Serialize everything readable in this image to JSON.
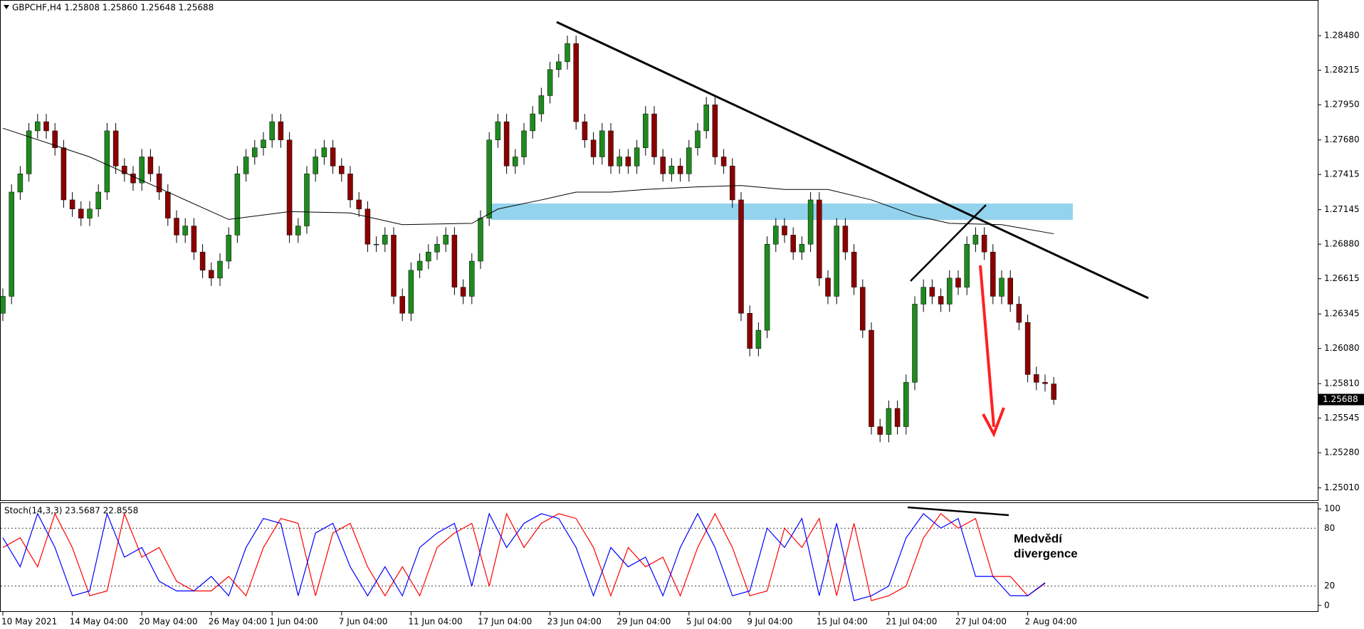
{
  "chart_data": {
    "type": "candlestick",
    "title": "GBPCHF,H4  1.25808 1.25860 1.25648 1.25688",
    "up_color": "#1f8a1f",
    "down_color": "#8b0000",
    "wick_color": "#000000",
    "open": [
      1.2635,
      1.2648,
      1.2728,
      1.2742,
      1.2775,
      1.2782,
      1.2775,
      1.2762,
      1.2722,
      1.2715,
      1.2708,
      1.2715,
      1.2728,
      1.2775,
      1.2748,
      1.2742,
      1.2735,
      1.2755,
      1.2742,
      1.2728,
      1.2708,
      1.2695,
      1.2702,
      1.2682,
      1.2668,
      1.2662,
      1.2675,
      1.2695,
      1.2742,
      1.2755,
      1.2762,
      1.2768,
      1.2782,
      1.2768,
      1.2695,
      1.2702,
      1.2742,
      1.2755,
      1.2762,
      1.2748,
      1.2742,
      1.2722,
      1.2715,
      1.2688,
      1.2688,
      1.2695,
      1.2648,
      1.2635,
      1.2668,
      1.2675,
      1.2682,
      1.2688,
      1.2695,
      1.2655,
      1.2648,
      1.2675,
      1.2708,
      1.2768,
      1.2782,
      1.2748,
      1.2755,
      1.2775,
      1.2788,
      1.2802,
      1.2822,
      1.2828,
      1.2842,
      1.2782,
      1.2768,
      1.2755,
      1.2775,
      1.2748,
      1.2755,
      1.2748,
      1.2762,
      1.2788,
      1.2755,
      1.2742,
      1.2748,
      1.2742,
      1.2762,
      1.2775,
      1.2795,
      1.2755,
      1.2748,
      1.2722,
      1.2635,
      1.2608,
      1.2622,
      1.2688,
      1.2702,
      1.2695,
      1.2682,
      1.2688,
      1.2722,
      1.2662,
      1.2648,
      1.2702,
      1.2682,
      1.2655,
      1.2622,
      1.2548,
      1.2542,
      1.2562,
      1.2548,
      1.2582,
      1.2642,
      1.2655,
      1.2648,
      1.2642,
      1.2662,
      1.2655,
      1.2688,
      1.2695,
      1.2682,
      1.2648,
      1.2662,
      1.2642,
      1.2628,
      1.2588,
      1.2582,
      1.25808
    ],
    "high": [
      1.2654,
      1.2734,
      1.2748,
      1.2781,
      1.2788,
      1.2788,
      1.2781,
      1.2768,
      1.2728,
      1.2721,
      1.2721,
      1.2734,
      1.2781,
      1.2781,
      1.2754,
      1.2748,
      1.2761,
      1.2761,
      1.2748,
      1.2734,
      1.2714,
      1.2708,
      1.2708,
      1.2688,
      1.2674,
      1.2681,
      1.2701,
      1.2748,
      1.2761,
      1.2768,
      1.2774,
      1.2788,
      1.2788,
      1.2774,
      1.2708,
      1.2748,
      1.2761,
      1.2768,
      1.2768,
      1.2754,
      1.2748,
      1.2728,
      1.2721,
      1.2694,
      1.2701,
      1.2701,
      1.2654,
      1.2674,
      1.2681,
      1.2688,
      1.2694,
      1.2701,
      1.2701,
      1.2661,
      1.2681,
      1.2714,
      1.2774,
      1.2788,
      1.2788,
      1.2761,
      1.2781,
      1.2794,
      1.2808,
      1.2828,
      1.2834,
      1.2848,
      1.2848,
      1.2788,
      1.2774,
      1.2781,
      1.2781,
      1.2761,
      1.2761,
      1.2768,
      1.2794,
      1.2794,
      1.2761,
      1.2754,
      1.2754,
      1.2768,
      1.2781,
      1.2801,
      1.2801,
      1.2761,
      1.2754,
      1.2728,
      1.2641,
      1.2628,
      1.2694,
      1.2708,
      1.2708,
      1.2701,
      1.2694,
      1.2728,
      1.2728,
      1.2668,
      1.2708,
      1.2708,
      1.2688,
      1.2661,
      1.2628,
      1.2554,
      1.2568,
      1.2568,
      1.2588,
      1.2648,
      1.2661,
      1.2661,
      1.2654,
      1.2668,
      1.2668,
      1.2694,
      1.2701,
      1.2701,
      1.2688,
      1.2668,
      1.2668,
      1.2648,
      1.2634,
      1.2594,
      1.2588,
      1.2586
    ],
    "low": [
      1.2629,
      1.2642,
      1.2722,
      1.2736,
      1.2769,
      1.2769,
      1.2756,
      1.2716,
      1.2709,
      1.2702,
      1.2702,
      1.2709,
      1.2722,
      1.2742,
      1.2736,
      1.2729,
      1.2729,
      1.2736,
      1.2722,
      1.2702,
      1.2689,
      1.2689,
      1.2676,
      1.2662,
      1.2656,
      1.2656,
      1.2669,
      1.2689,
      1.2736,
      1.2749,
      1.2756,
      1.2762,
      1.2762,
      1.2689,
      1.2689,
      1.2696,
      1.2736,
      1.2749,
      1.2742,
      1.2736,
      1.2716,
      1.2709,
      1.2682,
      1.2682,
      1.2682,
      1.2642,
      1.2629,
      1.2629,
      1.2662,
      1.2669,
      1.2676,
      1.2682,
      1.2649,
      1.2642,
      1.2642,
      1.2669,
      1.2702,
      1.2762,
      1.2742,
      1.2742,
      1.2749,
      1.2769,
      1.2782,
      1.2796,
      1.2816,
      1.2822,
      1.2776,
      1.2762,
      1.2749,
      1.2749,
      1.2742,
      1.2742,
      1.2742,
      1.2742,
      1.2756,
      1.2749,
      1.2736,
      1.2736,
      1.2736,
      1.2736,
      1.2756,
      1.2769,
      1.2749,
      1.2742,
      1.2716,
      1.2629,
      1.2602,
      1.2602,
      1.2616,
      1.2682,
      1.2689,
      1.2676,
      1.2676,
      1.2682,
      1.2656,
      1.2642,
      1.2642,
      1.2676,
      1.2649,
      1.2616,
      1.2542,
      1.2536,
      1.2536,
      1.2542,
      1.2542,
      1.2576,
      1.2636,
      1.2642,
      1.2636,
      1.2636,
      1.2649,
      1.2649,
      1.2682,
      1.2676,
      1.2642,
      1.2642,
      1.2636,
      1.2622,
      1.2582,
      1.2576,
      1.2575,
      1.25648
    ],
    "close": [
      1.2648,
      1.2728,
      1.2742,
      1.2775,
      1.2782,
      1.2775,
      1.2762,
      1.2722,
      1.2715,
      1.2708,
      1.2715,
      1.2728,
      1.2775,
      1.2748,
      1.2742,
      1.2735,
      1.2755,
      1.2742,
      1.2728,
      1.2708,
      1.2695,
      1.2702,
      1.2682,
      1.2668,
      1.2662,
      1.2675,
      1.2695,
      1.2742,
      1.2755,
      1.2762,
      1.2768,
      1.2782,
      1.2768,
      1.2695,
      1.2702,
      1.2742,
      1.2755,
      1.2762,
      1.2748,
      1.2742,
      1.2722,
      1.2715,
      1.2688,
      1.2688,
      1.2695,
      1.2648,
      1.2635,
      1.2668,
      1.2675,
      1.2682,
      1.2688,
      1.2695,
      1.2655,
      1.2648,
      1.2675,
      1.2708,
      1.2768,
      1.2782,
      1.2748,
      1.2755,
      1.2775,
      1.2788,
      1.2802,
      1.2822,
      1.2828,
      1.2842,
      1.2782,
      1.2768,
      1.2755,
      1.2775,
      1.2748,
      1.2755,
      1.2748,
      1.2762,
      1.2788,
      1.2755,
      1.2742,
      1.2748,
      1.2742,
      1.2762,
      1.2775,
      1.2795,
      1.2755,
      1.2748,
      1.2722,
      1.2635,
      1.2608,
      1.2622,
      1.2688,
      1.2702,
      1.2695,
      1.2682,
      1.2688,
      1.2722,
      1.2662,
      1.2648,
      1.2702,
      1.2682,
      1.2655,
      1.2622,
      1.2548,
      1.2542,
      1.2562,
      1.2548,
      1.2582,
      1.2642,
      1.2655,
      1.2648,
      1.2642,
      1.2662,
      1.2655,
      1.2688,
      1.2695,
      1.2682,
      1.2648,
      1.2662,
      1.2642,
      1.2628,
      1.2588,
      1.2582,
      1.2581,
      1.25688
    ],
    "ylim": [
      1.2491,
      1.28754
    ],
    "yticks": [
      {
        "value": 1.2848,
        "label": "1.28480"
      },
      1.28215,
      {
        "value": 1.2795,
        "label": "1.27950"
      },
      {
        "value": 1.2768,
        "label": "1.27680"
      },
      1.27415,
      1.27145,
      {
        "value": 1.2688,
        "label": "1.26880"
      },
      1.26615,
      1.26345,
      {
        "value": 1.2608,
        "label": "1.26080"
      },
      {
        "value": 1.2581,
        "label": "1.25810"
      },
      1.25545,
      {
        "value": 1.2528,
        "label": "1.25280"
      },
      {
        "value": 1.2501,
        "label": "1.25010"
      }
    ],
    "xticks": [
      {
        "value": 0,
        "label": "10 May 2021"
      },
      {
        "value": 8,
        "label": "14 May 04:00"
      },
      {
        "value": 16,
        "label": "20 May 04:00"
      },
      {
        "value": 24,
        "label": "26 May 04:00"
      },
      {
        "value": 31,
        "label": "1 Jun 04:00"
      },
      {
        "value": 39,
        "label": "7 Jun 04:00"
      },
      {
        "value": 47,
        "label": "11 Jun 04:00"
      },
      {
        "value": 55,
        "label": "17 Jun 04:00"
      },
      {
        "value": 63,
        "label": "23 Jun 04:00"
      },
      {
        "value": 71,
        "label": "29 Jun 04:00"
      },
      {
        "value": 79,
        "label": "5 Jul 04:00"
      },
      {
        "value": 86,
        "label": "9 Jul 04:00"
      },
      {
        "value": 94,
        "label": "15 Jul 04:00"
      },
      {
        "value": 102,
        "label": "21 Jul 04:00"
      },
      {
        "value": 110,
        "label": "27 Jul 04:00"
      },
      {
        "value": 118,
        "label": "2 Aug 04:00"
      }
    ],
    "ma": {
      "color": "#000000",
      "x": [
        0,
        10,
        20,
        26,
        33,
        40,
        46,
        54,
        57,
        62,
        66,
        70,
        74,
        80,
        85,
        90,
        95,
        100,
        105,
        109,
        115,
        121
      ],
      "values": [
        1.2777,
        1.2755,
        1.2725,
        1.2707,
        1.2713,
        1.2712,
        1.2703,
        1.2704,
        1.2715,
        1.2722,
        1.2728,
        1.2728,
        1.273,
        1.2732,
        1.2733,
        1.273,
        1.273,
        1.2722,
        1.271,
        1.2704,
        1.2703,
        1.2696
      ]
    },
    "indicator": {
      "type": "line",
      "title": "Stoch(14,3,3) 23.5687 22.8558",
      "x": [
        0,
        2,
        4,
        6,
        8,
        10,
        12,
        14,
        16,
        18,
        20,
        22,
        24,
        26,
        28,
        30,
        32,
        34,
        36,
        38,
        40,
        42,
        44,
        46,
        48,
        50,
        52,
        54,
        56,
        58,
        60,
        62,
        64,
        66,
        68,
        70,
        72,
        74,
        76,
        78,
        80,
        82,
        84,
        86,
        88,
        90,
        92,
        94,
        96,
        98,
        100,
        102,
        104,
        106,
        108,
        110,
        112,
        114,
        116,
        118,
        120
      ],
      "series": [
        {
          "color": "#0000ff",
          "values": [
            70,
            40,
            95,
            60,
            10,
            15,
            95,
            50,
            60,
            25,
            15,
            15,
            30,
            10,
            60,
            90,
            85,
            10,
            75,
            85,
            40,
            10,
            40,
            10,
            60,
            75,
            85,
            20,
            95,
            60,
            85,
            95,
            90,
            60,
            10,
            60,
            40,
            50,
            10,
            60,
            95,
            60,
            10,
            15,
            80,
            60,
            90,
            10,
            85,
            5,
            10,
            20,
            70,
            95,
            80,
            90,
            30,
            30,
            10,
            10,
            23.5687
          ]
        },
        {
          "color": "#ff0000",
          "values": [
            60,
            70,
            40,
            95,
            60,
            10,
            15,
            95,
            50,
            60,
            25,
            15,
            15,
            30,
            10,
            60,
            90,
            85,
            10,
            75,
            85,
            40,
            10,
            40,
            10,
            60,
            75,
            85,
            20,
            95,
            60,
            85,
            95,
            90,
            60,
            10,
            60,
            40,
            50,
            10,
            60,
            95,
            60,
            10,
            15,
            80,
            60,
            90,
            10,
            85,
            5,
            10,
            20,
            70,
            95,
            80,
            90,
            30,
            30,
            10,
            22.8558
          ]
        }
      ],
      "ylim": [
        -6,
        106
      ],
      "yticks": [
        100,
        80,
        20,
        0
      ],
      "annotation": [
        "Medvědí",
        "divergence"
      ]
    }
  }
}
